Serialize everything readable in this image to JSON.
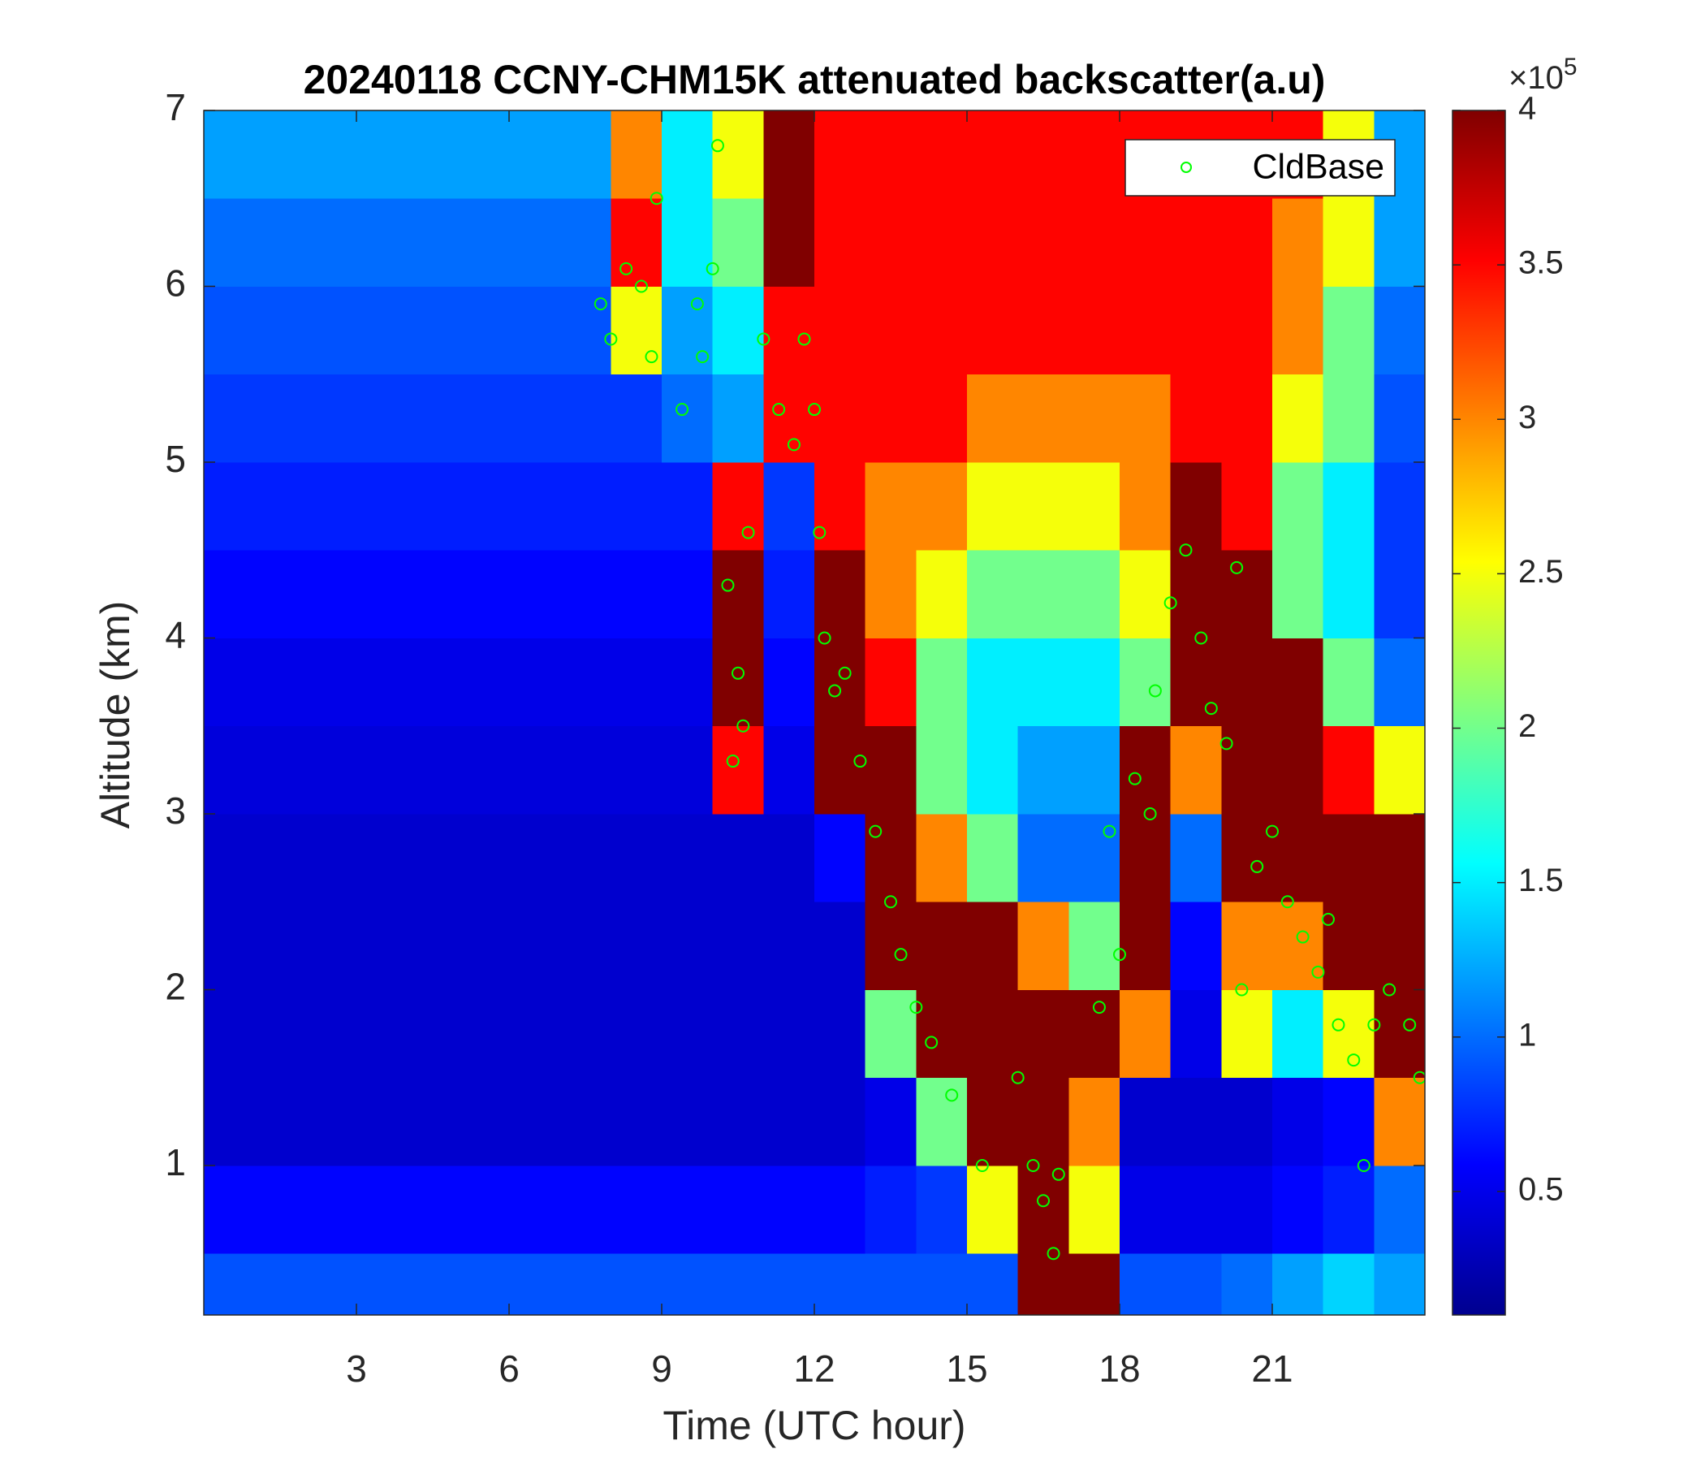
{
  "chart_data": {
    "type": "heatmap",
    "title": "20240118 CCNY-CHM15K attenuated backscatter(a.u)",
    "x_label": "Time (UTC hour)",
    "y_label": "Altitude (km)",
    "xlim": [
      0,
      24
    ],
    "xticks": [
      3,
      6,
      9,
      12,
      15,
      18,
      21
    ],
    "ylim": [
      0.15,
      7
    ],
    "yticks": [
      1,
      2,
      3,
      4,
      5,
      6,
      7
    ],
    "colormap": "jet",
    "clim": [
      0.1,
      4
    ],
    "colorbar_ticks": [
      0.5,
      1,
      1.5,
      2,
      2.5,
      3,
      3.5,
      4
    ],
    "colorbar_multiplier": "×10",
    "colorbar_exponent": "5",
    "x": [
      0.5,
      1.5,
      2.5,
      3.5,
      4.5,
      5.5,
      6.5,
      7.5,
      8.5,
      9.5,
      10.5,
      11.5,
      12.5,
      13.5,
      14.5,
      15.5,
      16.5,
      17.5,
      18.5,
      19.5,
      20.5,
      21.5,
      22.5,
      23.5
    ],
    "y": [
      0.25,
      0.75,
      1.25,
      1.75,
      2.25,
      2.75,
      3.25,
      3.75,
      4.25,
      4.75,
      5.25,
      5.75,
      6.25,
      6.75
    ],
    "z": [
      [
        0.9,
        0.9,
        0.9,
        0.9,
        0.9,
        0.9,
        0.9,
        0.9,
        0.9,
        0.9,
        0.9,
        0.9,
        0.9,
        0.9,
        0.9,
        0.9,
        4,
        4,
        0.9,
        0.9,
        1.0,
        1.2,
        1.4,
        1.2
      ],
      [
        0.6,
        0.6,
        0.6,
        0.6,
        0.6,
        0.6,
        0.6,
        0.6,
        0.6,
        0.6,
        0.6,
        0.6,
        0.6,
        0.7,
        0.8,
        2.5,
        4,
        2.5,
        0.5,
        0.5,
        0.5,
        0.6,
        0.7,
        1.0
      ],
      [
        0.4,
        0.4,
        0.4,
        0.4,
        0.4,
        0.4,
        0.4,
        0.4,
        0.4,
        0.4,
        0.4,
        0.4,
        0.4,
        0.5,
        2,
        4,
        4,
        3,
        0.4,
        0.4,
        0.4,
        0.5,
        0.6,
        3
      ],
      [
        0.4,
        0.4,
        0.4,
        0.4,
        0.4,
        0.4,
        0.4,
        0.4,
        0.4,
        0.4,
        0.4,
        0.4,
        0.4,
        2,
        4,
        4,
        4,
        4,
        3,
        0.5,
        2.5,
        1.5,
        2.5,
        4
      ],
      [
        0.4,
        0.4,
        0.4,
        0.4,
        0.4,
        0.4,
        0.4,
        0.4,
        0.4,
        0.4,
        0.4,
        0.4,
        0.4,
        4,
        4,
        4,
        3,
        2,
        4,
        0.6,
        3,
        3,
        4,
        4
      ],
      [
        0.4,
        0.4,
        0.4,
        0.4,
        0.4,
        0.4,
        0.4,
        0.4,
        0.4,
        0.4,
        0.4,
        0.4,
        0.6,
        4,
        3,
        2,
        1,
        1,
        4,
        1,
        4,
        4,
        4,
        4
      ],
      [
        0.45,
        0.45,
        0.45,
        0.45,
        0.45,
        0.45,
        0.45,
        0.45,
        0.45,
        0.45,
        3.5,
        0.5,
        4,
        4,
        2,
        1.5,
        1.2,
        1.2,
        4,
        3,
        4,
        4,
        3.5,
        2.5
      ],
      [
        0.5,
        0.5,
        0.5,
        0.5,
        0.5,
        0.5,
        0.5,
        0.5,
        0.5,
        0.5,
        4,
        0.6,
        4,
        3.5,
        2,
        1.5,
        1.5,
        1.5,
        2,
        4,
        4,
        4,
        2,
        1
      ],
      [
        0.6,
        0.6,
        0.6,
        0.6,
        0.6,
        0.6,
        0.6,
        0.6,
        0.6,
        0.6,
        4,
        0.7,
        4,
        3,
        2.5,
        2,
        2,
        2,
        2.5,
        4,
        4,
        2,
        1.5,
        0.8
      ],
      [
        0.7,
        0.7,
        0.7,
        0.7,
        0.7,
        0.7,
        0.7,
        0.7,
        0.7,
        0.7,
        3.5,
        0.8,
        3.5,
        3,
        3,
        2.5,
        2.5,
        2.5,
        3,
        4,
        3.5,
        2,
        1.5,
        0.8
      ],
      [
        0.8,
        0.8,
        0.8,
        0.8,
        0.8,
        0.8,
        0.8,
        0.8,
        0.8,
        1,
        1.2,
        3.5,
        3.5,
        3.5,
        3.5,
        3,
        3,
        3,
        3,
        3.5,
        3.5,
        2.5,
        2,
        0.9
      ],
      [
        0.9,
        0.9,
        0.9,
        0.9,
        0.9,
        0.9,
        0.9,
        0.9,
        2.5,
        1.2,
        1.5,
        3.5,
        3.5,
        3.5,
        3.5,
        3.5,
        3.5,
        3.5,
        3.5,
        3.5,
        3.5,
        3,
        2,
        1
      ],
      [
        1,
        1,
        1,
        1,
        1,
        1,
        1,
        1,
        3.5,
        1.5,
        2,
        4,
        3.5,
        3.5,
        3.5,
        3.5,
        3.5,
        3.5,
        3.5,
        3.5,
        3.5,
        3,
        2.5,
        1.2
      ],
      [
        1.2,
        1.2,
        1.2,
        1.2,
        1.2,
        1.2,
        1.2,
        1.2,
        3,
        1.5,
        2.5,
        4,
        3.5,
        3.5,
        3.5,
        3.5,
        3.5,
        3.5,
        3.5,
        3.5,
        3.5,
        3.5,
        2.5,
        1.2
      ]
    ],
    "overlay": {
      "type": "scatter",
      "name": "CldBase",
      "color": "#00ff00",
      "legend": "upper right",
      "x": [
        7.8,
        8.0,
        8.3,
        8.6,
        8.8,
        8.9,
        9.4,
        9.7,
        9.8,
        10.1,
        10.0,
        10.3,
        10.5,
        10.6,
        10.4,
        10.7,
        11.0,
        11.3,
        11.6,
        11.8,
        12.0,
        12.1,
        12.2,
        12.4,
        12.6,
        12.9,
        13.2,
        13.5,
        13.7,
        14.0,
        14.3,
        14.7,
        15.3,
        16.0,
        16.3,
        16.5,
        16.7,
        16.8,
        17.6,
        17.8,
        18.0,
        18.3,
        18.7,
        18.6,
        19.0,
        19.3,
        19.6,
        19.8,
        20.1,
        20.3,
        20.4,
        20.7,
        21.0,
        21.3,
        21.6,
        21.9,
        22.1,
        22.3,
        22.6,
        22.8,
        23.0,
        23.3,
        23.7,
        23.9
      ],
      "y": [
        5.9,
        5.7,
        6.1,
        6.0,
        5.6,
        6.5,
        5.3,
        5.9,
        5.6,
        6.8,
        6.1,
        4.3,
        3.8,
        3.5,
        3.3,
        4.6,
        5.7,
        5.3,
        5.1,
        5.7,
        5.3,
        4.6,
        4.0,
        3.7,
        3.8,
        3.3,
        2.9,
        2.5,
        2.2,
        1.9,
        1.7,
        1.4,
        1.0,
        1.5,
        1.0,
        0.8,
        0.5,
        0.95,
        1.9,
        2.9,
        2.2,
        3.2,
        3.7,
        3.0,
        4.2,
        4.5,
        4.0,
        3.6,
        3.4,
        4.4,
        2.0,
        2.7,
        2.9,
        2.5,
        2.3,
        2.1,
        2.4,
        1.8,
        1.6,
        1.0,
        1.8,
        2.0,
        1.8,
        1.5
      ]
    }
  }
}
